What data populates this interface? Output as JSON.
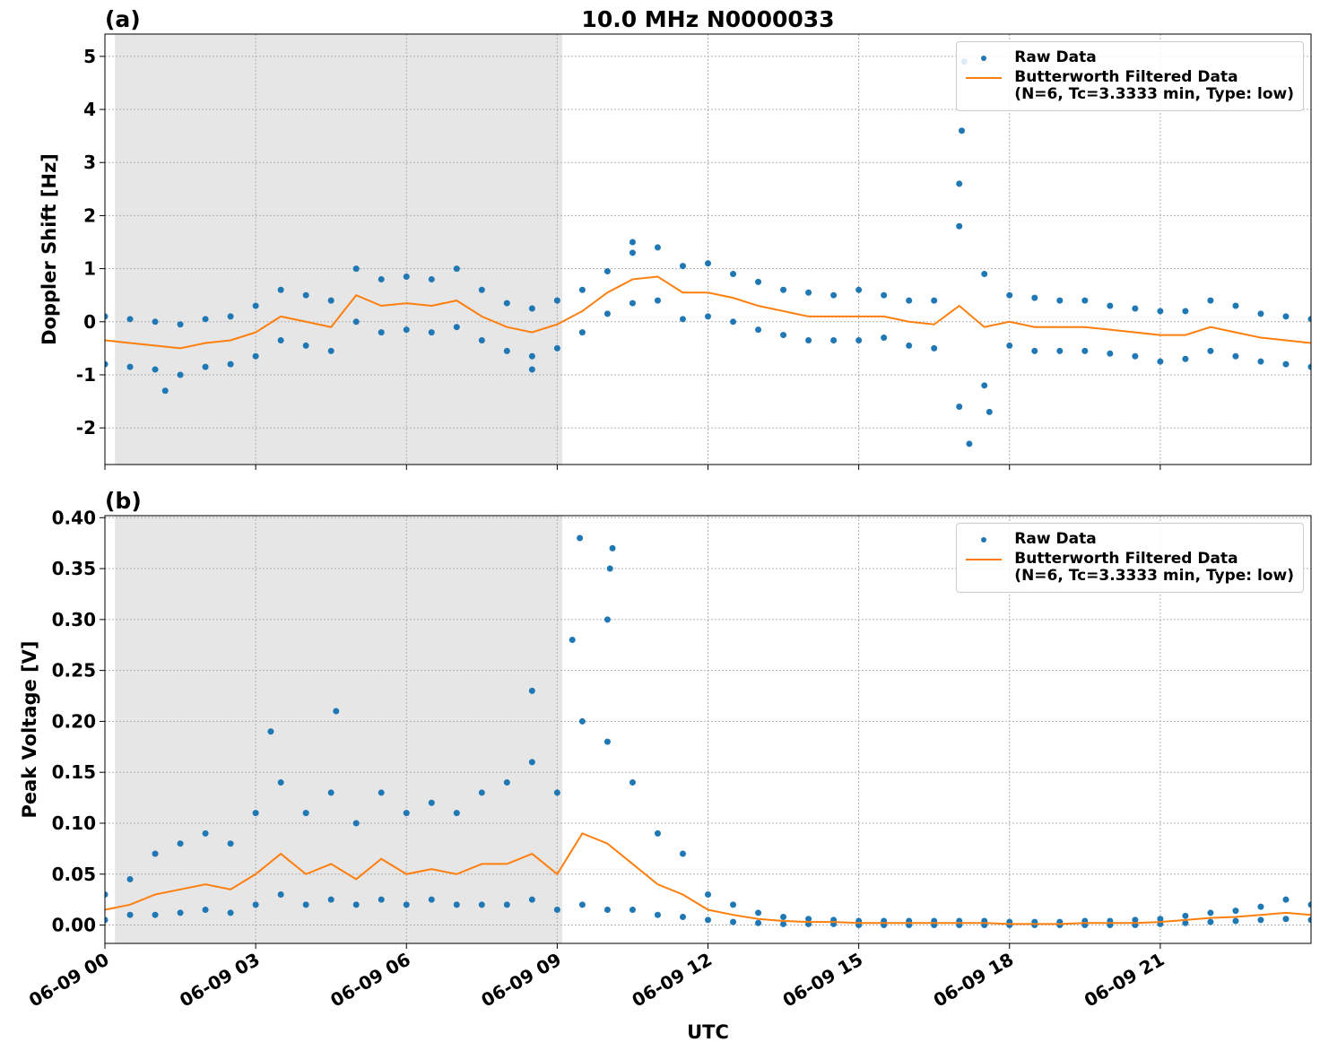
{
  "chart_data": [
    {
      "type": "scatter-line",
      "title": "10.0 MHz N0000033",
      "panel_label": "(a)",
      "ylabel": "Doppler Shift [Hz]",
      "xlim": [
        0,
        24
      ],
      "ylim": [
        -2.69,
        5.42
      ],
      "xticks": [
        0,
        3,
        6,
        9,
        12,
        15,
        18,
        21
      ],
      "yticks": [
        -2,
        -1,
        0,
        1,
        2,
        3,
        4,
        5
      ],
      "grid": true,
      "legend": "upper right",
      "shaded_span": [
        0.2,
        9.1
      ],
      "series": [
        {
          "name": "Raw Data",
          "type": "scatter",
          "color": "#1f77b4",
          "x": [
            0,
            0.5,
            1,
            1.5,
            2,
            2.5,
            3,
            3.5,
            4,
            4.5,
            5,
            5.5,
            6,
            6.5,
            7,
            7.5,
            8,
            8.5,
            9,
            9.5,
            10,
            10.5,
            11,
            11.5,
            12,
            12.5,
            13,
            13.5,
            14,
            14.5,
            15,
            15.5,
            16,
            16.5,
            17,
            17.5,
            18,
            18.5,
            19,
            19.5,
            20,
            20.5,
            21,
            21.5,
            22,
            22.5,
            23,
            23.5,
            24,
            0,
            0.5,
            1,
            1.5,
            2,
            2.5,
            3,
            3.5,
            4,
            4.5,
            5,
            5.5,
            6,
            6.5,
            7,
            7.5,
            8,
            8.5,
            9,
            9.5,
            10,
            10.5,
            11,
            11.5,
            12,
            12.5,
            13,
            13.5,
            14,
            14.5,
            15,
            15.5,
            16,
            16.5,
            17,
            17.5,
            18,
            18.5,
            19,
            19.5,
            20,
            20.5,
            21,
            21.5,
            22,
            22.5,
            23,
            23.5,
            24,
            1.2,
            8.5,
            10.5,
            17.0,
            17.05,
            17.1,
            17.2,
            17.6
          ],
          "values": [
            0.1,
            0.05,
            0.0,
            -0.05,
            0.05,
            0.1,
            0.3,
            0.6,
            0.5,
            0.4,
            1.0,
            0.8,
            0.85,
            0.8,
            1.0,
            0.6,
            0.35,
            0.25,
            0.4,
            0.6,
            0.95,
            1.3,
            1.4,
            1.05,
            1.1,
            0.9,
            0.75,
            0.6,
            0.55,
            0.5,
            0.6,
            0.5,
            0.4,
            0.4,
            1.8,
            0.9,
            0.5,
            0.45,
            0.4,
            0.4,
            0.3,
            0.25,
            0.2,
            0.2,
            0.4,
            0.3,
            0.15,
            0.1,
            0.05,
            -0.8,
            -0.85,
            -0.9,
            -1.0,
            -0.85,
            -0.8,
            -0.65,
            -0.35,
            -0.45,
            -0.55,
            0.0,
            -0.2,
            -0.15,
            -0.2,
            -0.1,
            -0.35,
            -0.55,
            -0.65,
            -0.5,
            -0.2,
            0.15,
            0.35,
            0.4,
            0.05,
            0.1,
            0.0,
            -0.15,
            -0.25,
            -0.35,
            -0.35,
            -0.35,
            -0.3,
            -0.45,
            -0.5,
            -1.6,
            -1.2,
            -0.45,
            -0.55,
            -0.55,
            -0.55,
            -0.6,
            -0.65,
            -0.75,
            -0.7,
            -0.55,
            -0.65,
            -0.75,
            -0.8,
            -0.85,
            -1.3,
            -0.9,
            1.5,
            2.6,
            3.6,
            4.9,
            -2.3,
            -1.7
          ]
        },
        {
          "name": "Butterworth Filtered Data\n(N=6, Tc=3.3333 min, Type: low)",
          "type": "line",
          "color": "#ff7f0e",
          "x": [
            0,
            0.5,
            1,
            1.5,
            2,
            2.5,
            3,
            3.5,
            4,
            4.5,
            5,
            5.5,
            6,
            6.5,
            7,
            7.5,
            8,
            8.5,
            9,
            9.5,
            10,
            10.5,
            11,
            11.5,
            12,
            12.5,
            13,
            13.5,
            14,
            14.5,
            15,
            15.5,
            16,
            16.5,
            17,
            17.5,
            18,
            18.5,
            19,
            19.5,
            20,
            20.5,
            21,
            21.5,
            22,
            22.5,
            23,
            23.5,
            24
          ],
          "values": [
            -0.35,
            -0.4,
            -0.45,
            -0.5,
            -0.4,
            -0.35,
            -0.2,
            0.1,
            0.0,
            -0.1,
            0.5,
            0.3,
            0.35,
            0.3,
            0.4,
            0.1,
            -0.1,
            -0.2,
            -0.05,
            0.2,
            0.55,
            0.8,
            0.85,
            0.55,
            0.55,
            0.45,
            0.3,
            0.2,
            0.1,
            0.1,
            0.1,
            0.1,
            0.0,
            -0.05,
            0.3,
            -0.1,
            0.0,
            -0.1,
            -0.1,
            -0.1,
            -0.15,
            -0.2,
            -0.25,
            -0.25,
            -0.1,
            -0.2,
            -0.3,
            -0.35,
            -0.4
          ]
        }
      ]
    },
    {
      "type": "scatter-line",
      "panel_label": "(b)",
      "ylabel": "Peak Voltage [V]",
      "xlabel": "UTC",
      "xlim": [
        0,
        24
      ],
      "ylim": [
        -0.018,
        0.402
      ],
      "xticks": [
        {
          "value": 0,
          "label": "06-09 00"
        },
        {
          "value": 3,
          "label": "06-09 03"
        },
        {
          "value": 6,
          "label": "06-09 06"
        },
        {
          "value": 9,
          "label": "06-09 09"
        },
        {
          "value": 12,
          "label": "06-09 12"
        },
        {
          "value": 15,
          "label": "06-09 15"
        },
        {
          "value": 18,
          "label": "06-09 18"
        },
        {
          "value": 21,
          "label": "06-09 21"
        }
      ],
      "yticks": [
        {
          "value": 0,
          "label": "0.00"
        },
        {
          "value": 0.05,
          "label": "0.05"
        },
        {
          "value": 0.1,
          "label": "0.10"
        },
        {
          "value": 0.15,
          "label": "0.15"
        },
        {
          "value": 0.2,
          "label": "0.20"
        },
        {
          "value": 0.25,
          "label": "0.25"
        },
        {
          "value": 0.3,
          "label": "0.30"
        },
        {
          "value": 0.35,
          "label": "0.35"
        },
        {
          "value": 0.4,
          "label": "0.40"
        }
      ],
      "grid": true,
      "legend": "upper right",
      "shaded_span": [
        0.2,
        9.1
      ],
      "series": [
        {
          "name": "Raw Data",
          "type": "scatter",
          "color": "#1f77b4",
          "x": [
            0,
            0.5,
            1,
            1.5,
            2,
            2.5,
            3,
            3.5,
            4,
            4.5,
            5,
            5.5,
            6,
            6.5,
            7,
            7.5,
            8,
            8.5,
            9,
            9.5,
            10,
            10.5,
            11,
            11.5,
            12,
            12.5,
            13,
            13.5,
            14,
            14.5,
            15,
            15.5,
            16,
            16.5,
            17,
            17.5,
            18,
            18.5,
            19,
            19.5,
            20,
            20.5,
            21,
            21.5,
            22,
            22.5,
            23,
            23.5,
            24,
            0,
            0.5,
            1,
            1.5,
            2,
            2.5,
            3,
            3.5,
            4,
            4.5,
            5,
            5.5,
            6,
            6.5,
            7,
            7.5,
            8,
            8.5,
            9,
            9.5,
            10,
            10.5,
            11,
            11.5,
            12,
            12.5,
            13,
            13.5,
            14,
            14.5,
            15,
            15.5,
            16,
            16.5,
            17,
            17.5,
            18,
            18.5,
            19,
            19.5,
            20,
            20.5,
            21,
            21.5,
            22,
            22.5,
            23,
            23.5,
            24,
            3.3,
            4.6,
            8.5,
            9.3,
            9.45,
            10.0,
            10.1,
            10.05
          ],
          "values": [
            0.03,
            0.045,
            0.07,
            0.08,
            0.09,
            0.08,
            0.11,
            0.14,
            0.11,
            0.13,
            0.1,
            0.13,
            0.11,
            0.12,
            0.11,
            0.13,
            0.14,
            0.16,
            0.13,
            0.2,
            0.18,
            0.14,
            0.09,
            0.07,
            0.03,
            0.02,
            0.012,
            0.008,
            0.006,
            0.005,
            0.004,
            0.004,
            0.004,
            0.004,
            0.004,
            0.004,
            0.003,
            0.003,
            0.003,
            0.004,
            0.004,
            0.005,
            0.006,
            0.009,
            0.012,
            0.014,
            0.018,
            0.025,
            0.02,
            0.005,
            0.01,
            0.01,
            0.012,
            0.015,
            0.012,
            0.02,
            0.03,
            0.02,
            0.025,
            0.02,
            0.025,
            0.02,
            0.025,
            0.02,
            0.02,
            0.02,
            0.025,
            0.015,
            0.02,
            0.015,
            0.015,
            0.01,
            0.008,
            0.005,
            0.003,
            0.002,
            0.001,
            0.001,
            0.001,
            0,
            0,
            0,
            0,
            0,
            0,
            0,
            0,
            0,
            0,
            0,
            0,
            0.001,
            0.002,
            0.003,
            0.004,
            0.005,
            0.006,
            0.005,
            0.19,
            0.21,
            0.23,
            0.28,
            0.38,
            0.3,
            0.37,
            0.35
          ]
        },
        {
          "name": "Butterworth Filtered Data\n(N=6, Tc=3.3333 min, Type: low)",
          "type": "line",
          "color": "#ff7f0e",
          "x": [
            0,
            0.5,
            1,
            1.5,
            2,
            2.5,
            3,
            3.5,
            4,
            4.5,
            5,
            5.5,
            6,
            6.5,
            7,
            7.5,
            8,
            8.5,
            9,
            9.5,
            10,
            10.5,
            11,
            11.5,
            12,
            12.5,
            13,
            13.5,
            14,
            14.5,
            15,
            15.5,
            16,
            16.5,
            17,
            17.5,
            18,
            18.5,
            19,
            19.5,
            20,
            20.5,
            21,
            21.5,
            22,
            22.5,
            23,
            23.5,
            24
          ],
          "values": [
            0.015,
            0.02,
            0.03,
            0.035,
            0.04,
            0.035,
            0.05,
            0.07,
            0.05,
            0.06,
            0.045,
            0.065,
            0.05,
            0.055,
            0.05,
            0.06,
            0.06,
            0.07,
            0.05,
            0.09,
            0.08,
            0.06,
            0.04,
            0.03,
            0.015,
            0.01,
            0.006,
            0.004,
            0.003,
            0.003,
            0.002,
            0.002,
            0.002,
            0.002,
            0.002,
            0.002,
            0.001,
            0.001,
            0.001,
            0.002,
            0.002,
            0.002,
            0.003,
            0.005,
            0.007,
            0.008,
            0.01,
            0.012,
            0.01
          ]
        }
      ]
    }
  ]
}
